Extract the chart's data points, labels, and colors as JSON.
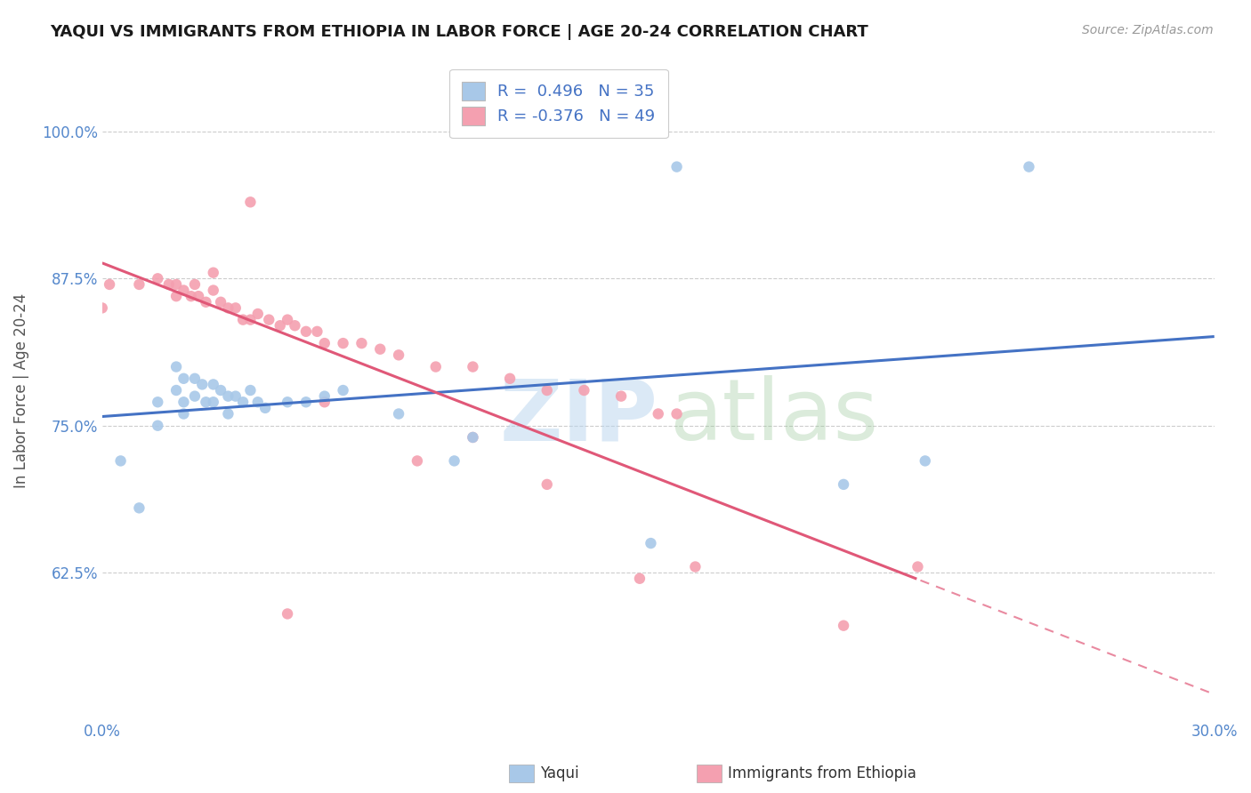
{
  "title": "YAQUI VS IMMIGRANTS FROM ETHIOPIA IN LABOR FORCE | AGE 20-24 CORRELATION CHART",
  "source_text": "Source: ZipAtlas.com",
  "ylabel": "In Labor Force | Age 20-24",
  "xlim": [
    0.0,
    0.3
  ],
  "ylim": [
    0.5,
    1.06
  ],
  "ytick_vals": [
    0.625,
    0.75,
    0.875,
    1.0
  ],
  "ytick_labels": [
    "62.5%",
    "75.0%",
    "87.5%",
    "100.0%"
  ],
  "r_yaqui": 0.496,
  "n_yaqui": 35,
  "r_ethiopia": -0.376,
  "n_ethiopia": 49,
  "legend_label_1": "Yaqui",
  "legend_label_2": "Immigrants from Ethiopia",
  "yaqui_color": "#a8c8e8",
  "ethiopia_color": "#f4a0b0",
  "yaqui_line_color": "#4472c4",
  "ethiopia_line_color": "#e05878",
  "grid_color": "#cccccc",
  "title_color": "#1a1a1a",
  "ytick_color": "#5588cc",
  "xtick_color": "#5588cc",
  "yaqui_x": [
    0.005,
    0.01,
    0.015,
    0.015,
    0.02,
    0.02,
    0.022,
    0.022,
    0.022,
    0.025,
    0.025,
    0.027,
    0.028,
    0.03,
    0.03,
    0.032,
    0.034,
    0.034,
    0.036,
    0.038,
    0.04,
    0.042,
    0.044,
    0.05,
    0.055,
    0.06,
    0.065,
    0.08,
    0.095,
    0.1,
    0.148,
    0.155,
    0.2,
    0.222,
    0.25
  ],
  "yaqui_y": [
    0.72,
    0.68,
    0.77,
    0.75,
    0.8,
    0.78,
    0.79,
    0.77,
    0.76,
    0.79,
    0.775,
    0.785,
    0.77,
    0.785,
    0.77,
    0.78,
    0.775,
    0.76,
    0.775,
    0.77,
    0.78,
    0.77,
    0.765,
    0.77,
    0.77,
    0.775,
    0.78,
    0.76,
    0.72,
    0.74,
    0.65,
    0.97,
    0.7,
    0.72,
    0.97
  ],
  "ethiopia_x": [
    0.0,
    0.002,
    0.01,
    0.015,
    0.018,
    0.02,
    0.02,
    0.022,
    0.024,
    0.025,
    0.026,
    0.028,
    0.03,
    0.032,
    0.034,
    0.036,
    0.038,
    0.04,
    0.042,
    0.045,
    0.048,
    0.05,
    0.052,
    0.055,
    0.058,
    0.06,
    0.065,
    0.07,
    0.075,
    0.08,
    0.09,
    0.1,
    0.11,
    0.12,
    0.13,
    0.14,
    0.15,
    0.155,
    0.04,
    0.085,
    0.16,
    0.22,
    0.06,
    0.1,
    0.12,
    0.05,
    0.145,
    0.2,
    0.03
  ],
  "ethiopia_y": [
    0.85,
    0.87,
    0.87,
    0.875,
    0.87,
    0.87,
    0.86,
    0.865,
    0.86,
    0.87,
    0.86,
    0.855,
    0.865,
    0.855,
    0.85,
    0.85,
    0.84,
    0.84,
    0.845,
    0.84,
    0.835,
    0.84,
    0.835,
    0.83,
    0.83,
    0.82,
    0.82,
    0.82,
    0.815,
    0.81,
    0.8,
    0.8,
    0.79,
    0.78,
    0.78,
    0.775,
    0.76,
    0.76,
    0.94,
    0.72,
    0.63,
    0.63,
    0.77,
    0.74,
    0.7,
    0.59,
    0.62,
    0.58,
    0.88
  ]
}
